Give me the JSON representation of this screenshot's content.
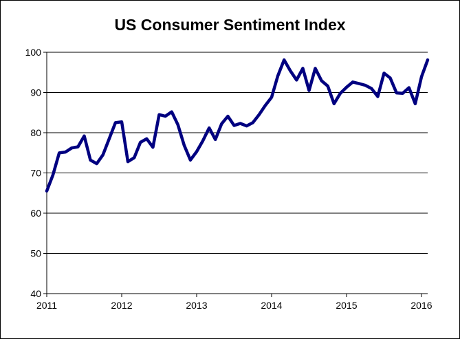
{
  "chart_data": {
    "type": "line",
    "title": "US Consumer Sentiment Index",
    "xlabel": "",
    "ylabel": "",
    "xlim": [
      2011,
      2016.083
    ],
    "ylim": [
      40,
      100
    ],
    "x_ticks": [
      2011,
      2012,
      2013,
      2014,
      2015,
      2016
    ],
    "x_tick_labels": [
      "2011",
      "2012",
      "2013",
      "2014",
      "2015",
      "2016"
    ],
    "y_ticks": [
      40,
      50,
      60,
      70,
      80,
      90,
      100
    ],
    "y_tick_labels": [
      "40",
      "50",
      "60",
      "70",
      "80",
      "90",
      "100"
    ],
    "grid": "horizontal",
    "line_color": "#000080",
    "series": [
      {
        "name": "US Consumer Sentiment Index",
        "x": [
          2011.0,
          2011.083,
          2011.167,
          2011.25,
          2011.333,
          2011.417,
          2011.5,
          2011.583,
          2011.667,
          2011.75,
          2011.833,
          2011.917,
          2012.0,
          2012.083,
          2012.167,
          2012.25,
          2012.333,
          2012.417,
          2012.5,
          2012.583,
          2012.667,
          2012.75,
          2012.833,
          2012.917,
          2013.0,
          2013.083,
          2013.167,
          2013.25,
          2013.333,
          2013.417,
          2013.5,
          2013.583,
          2013.667,
          2013.75,
          2013.833,
          2013.917,
          2014.0,
          2014.083,
          2014.167,
          2014.25,
          2014.333,
          2014.417,
          2014.5,
          2014.583,
          2014.667,
          2014.75,
          2014.833,
          2014.917,
          2015.0,
          2015.083,
          2015.167,
          2015.25,
          2015.333,
          2015.417,
          2015.5,
          2015.583,
          2015.667,
          2015.75,
          2015.833,
          2015.917,
          2016.0,
          2016.083
        ],
        "values": [
          65.5,
          69.5,
          75.0,
          75.2,
          76.2,
          76.5,
          79.2,
          73.2,
          72.3,
          74.5,
          78.5,
          82.5,
          82.7,
          72.8,
          73.8,
          77.6,
          78.5,
          76.4,
          84.5,
          84.1,
          85.2,
          82.0,
          76.9,
          73.2,
          75.3,
          78.0,
          81.2,
          78.3,
          82.2,
          84.1,
          81.8,
          82.3,
          81.7,
          82.5,
          84.5,
          86.8,
          88.8,
          94.1,
          98.1,
          95.4,
          93.1,
          96.0,
          90.5,
          96.0,
          92.9,
          91.6,
          87.2,
          89.8,
          91.3,
          92.6,
          92.2,
          91.8,
          91.0,
          89.0,
          94.8,
          93.6,
          89.9,
          89.8,
          91.2,
          87.2,
          93.9,
          98.1
        ]
      }
    ]
  }
}
